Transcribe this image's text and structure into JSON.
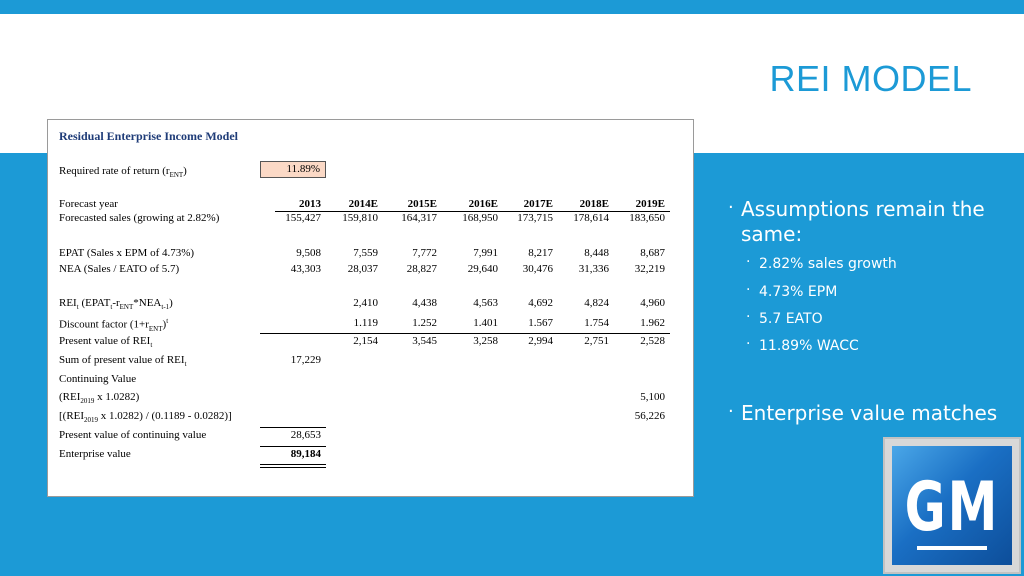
{
  "slide": {
    "title": "REI MODEL",
    "accent_color": "#1c9ad6"
  },
  "table": {
    "title": "Residual Enterprise Income Model",
    "rate_label": "Required rate of return (r",
    "rate_label_sub": "ENT",
    "rate_label_end": ")",
    "rate_value": "11.89%",
    "year_label": "Forecast year",
    "years": [
      "2013",
      "2014E",
      "2015E",
      "2016E",
      "2017E",
      "2018E",
      "2019E"
    ],
    "sales_label": "Forecasted sales (growing at 2.82%)",
    "sales": [
      "155,427",
      "159,810",
      "164,317",
      "168,950",
      "173,715",
      "178,614",
      "183,650"
    ],
    "epat_label": "EPAT (Sales x EPM of 4.73%)",
    "epat": [
      "9,508",
      "7,559",
      "7,772",
      "7,991",
      "8,217",
      "8,448",
      "8,687"
    ],
    "nea_label": "NEA (Sales / EATO of 5.7)",
    "nea": [
      "43,303",
      "28,037",
      "28,827",
      "29,640",
      "30,476",
      "31,336",
      "32,219"
    ],
    "rei_label": "REI",
    "rei": [
      "",
      "2,410",
      "4,438",
      "4,563",
      "4,692",
      "4,824",
      "4,960"
    ],
    "discount_label": "Discount factor (1+r",
    "discount": [
      "",
      "1.119",
      "1.252",
      "1.401",
      "1.567",
      "1.754",
      "1.962"
    ],
    "pv_label": "Present value of REI",
    "pv": [
      "",
      "2,154",
      "3,545",
      "3,258",
      "2,994",
      "2,751",
      "2,528"
    ],
    "sum_label": "Sum of present value of REI",
    "sum_value": "17,229",
    "cv_label": "Continuing Value",
    "cv1_label": "(REI",
    "cv1_value": "5,100",
    "cv2_label": "[(REI",
    "cv2_value": "56,226",
    "pvcv_label": "Present value of continuing value",
    "pvcv_value": "28,653",
    "ev_label": "Enterprise value",
    "ev_value": "89,184"
  },
  "bullets": {
    "assumptions": "Assumptions remain the same:",
    "items": [
      "2.82% sales growth",
      "4.73% EPM",
      "5.7 EATO",
      "11.89%  WACC"
    ],
    "enterprise": "Enterprise value matches"
  },
  "logo": {
    "text": "GM",
    "icon": "gm-logo-icon"
  }
}
